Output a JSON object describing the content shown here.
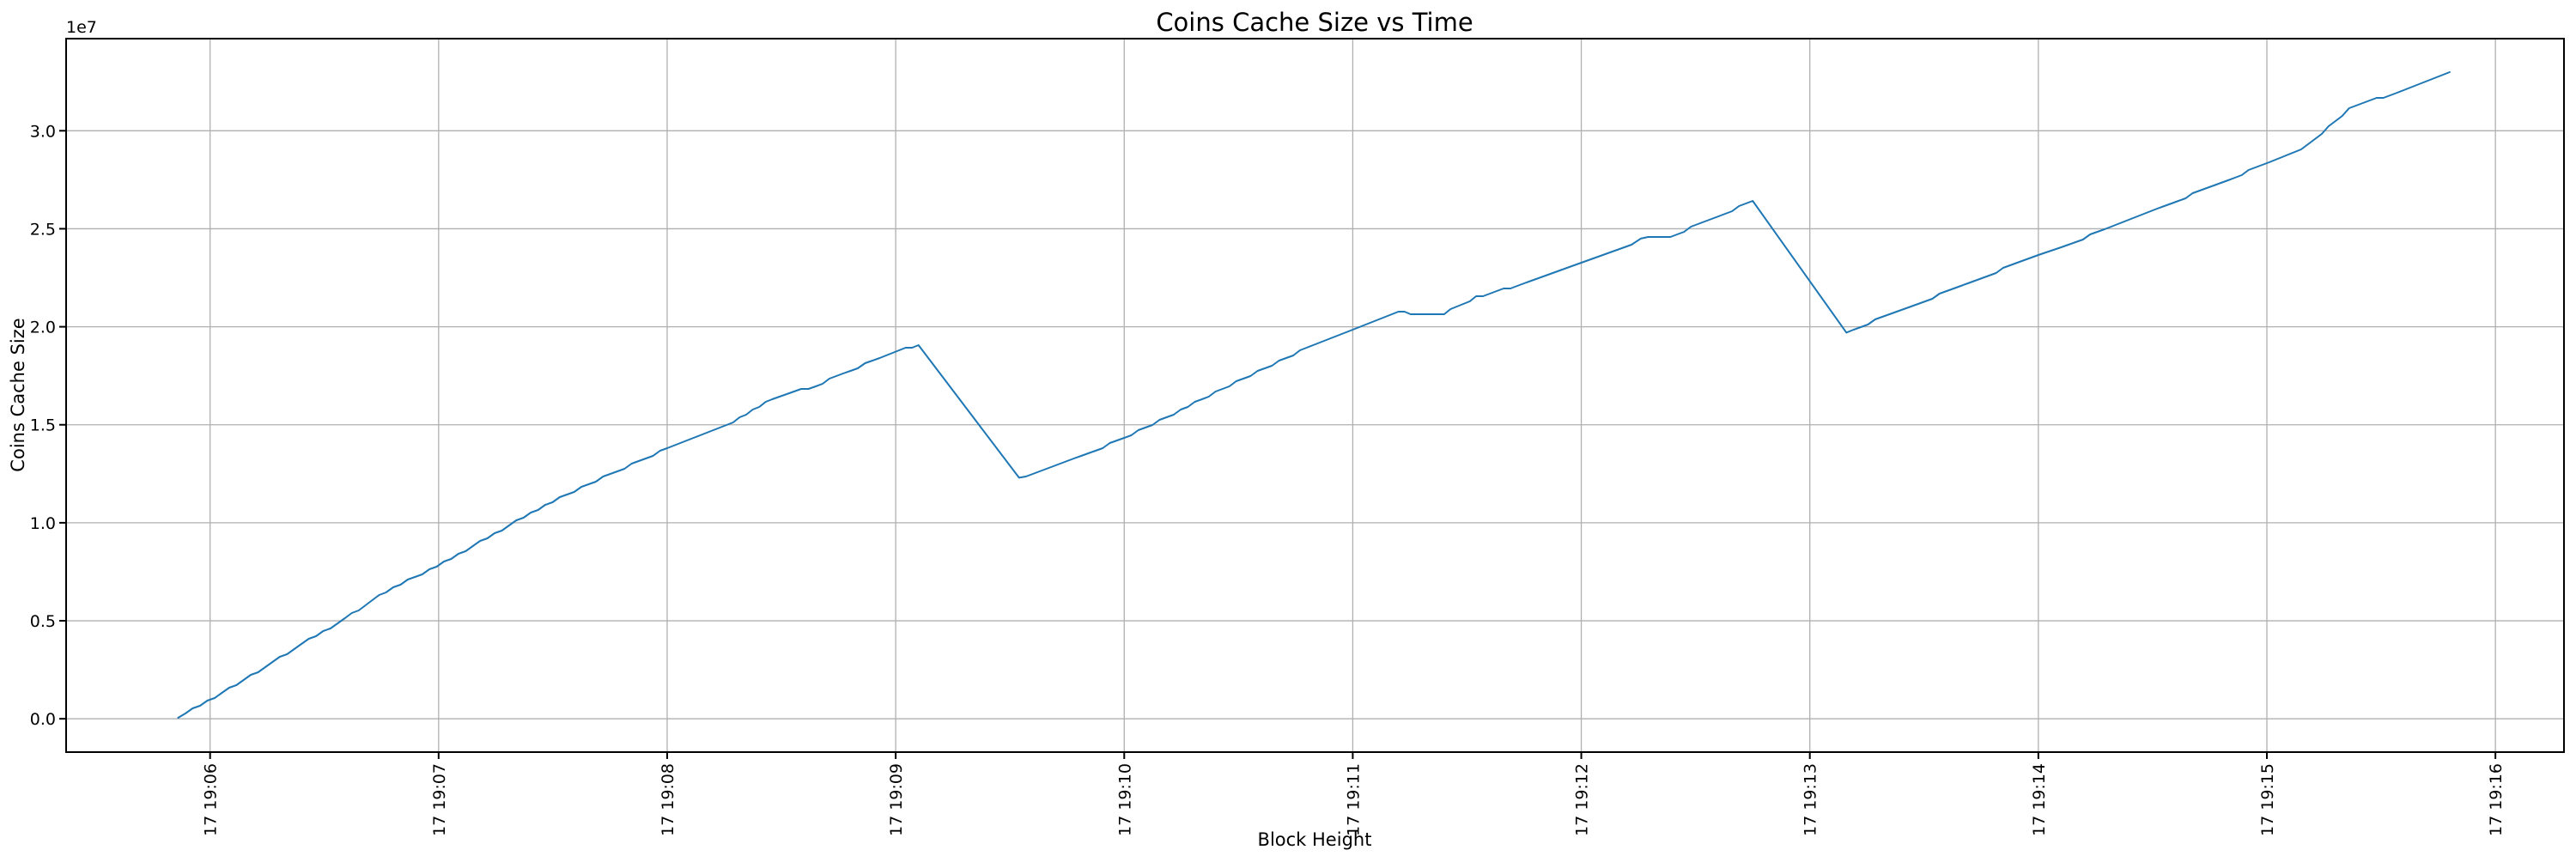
{
  "chart_data": {
    "type": "line",
    "title": "Coins Cache Size vs Time",
    "xlabel": "Block Height",
    "ylabel": "Coins Cache Size",
    "y_offset_label": "1e7",
    "grid": true,
    "legend_position": "none",
    "line_color": "#1f77b4",
    "grid_color": "#b0b0b0",
    "frame_color": "#000000",
    "x_ticks": [
      {
        "label": "17 19:06",
        "minute": 0
      },
      {
        "label": "17 19:07",
        "minute": 1
      },
      {
        "label": "17 19:08",
        "minute": 2
      },
      {
        "label": "17 19:09",
        "minute": 3
      },
      {
        "label": "17 19:10",
        "minute": 4
      },
      {
        "label": "17 19:11",
        "minute": 5
      },
      {
        "label": "17 19:12",
        "minute": 6
      },
      {
        "label": "17 19:13",
        "minute": 7
      },
      {
        "label": "17 19:14",
        "minute": 8
      },
      {
        "label": "17 19:15",
        "minute": 9
      },
      {
        "label": "17 19:16",
        "minute": 10
      }
    ],
    "y_ticks": [
      {
        "label": "0.0",
        "value": 0
      },
      {
        "label": "0.5",
        "value": 5000000
      },
      {
        "label": "1.0",
        "value": 10000000
      },
      {
        "label": "1.5",
        "value": 15000000
      },
      {
        "label": "2.0",
        "value": 20000000
      },
      {
        "label": "2.5",
        "value": 25000000
      },
      {
        "label": "3.0",
        "value": 30000000
      }
    ],
    "xlim_minutes": [
      -0.63,
      10.3
    ],
    "ylim": [
      -1700000,
      34700000
    ],
    "series": [
      {
        "name": "coins-cache-size",
        "points": [
          [
            -0.14,
            50000
          ],
          [
            0.02,
            1100000
          ],
          [
            0.21,
            2400000
          ],
          [
            0.4,
            3800000
          ],
          [
            0.59,
            5100000
          ],
          [
            0.77,
            6500000
          ],
          [
            0.96,
            7600000
          ],
          [
            1.15,
            8800000
          ],
          [
            1.34,
            10100000
          ],
          [
            1.53,
            11300000
          ],
          [
            1.72,
            12300000
          ],
          [
            2.0,
            13800000
          ],
          [
            2.26,
            15000000
          ],
          [
            2.46,
            16300000
          ],
          [
            2.65,
            17000000
          ],
          [
            2.77,
            17600000
          ],
          [
            2.93,
            18400000
          ],
          [
            3.1,
            19100000
          ],
          [
            3.54,
            12300000
          ],
          [
            3.78,
            13300000
          ],
          [
            4.0,
            14300000
          ],
          [
            4.34,
            16300000
          ],
          [
            4.49,
            17200000
          ],
          [
            4.74,
            18600000
          ],
          [
            5.0,
            19900000
          ],
          [
            5.2,
            20800000
          ],
          [
            5.28,
            20600000
          ],
          [
            5.4,
            20700000
          ],
          [
            5.54,
            21500000
          ],
          [
            5.75,
            22200000
          ],
          [
            6.0,
            23300000
          ],
          [
            6.22,
            24200000
          ],
          [
            6.26,
            24500000
          ],
          [
            6.39,
            24600000
          ],
          [
            6.75,
            26400000
          ],
          [
            7.16,
            19700000
          ],
          [
            7.38,
            20800000
          ],
          [
            7.63,
            21900000
          ],
          [
            8.0,
            23700000
          ],
          [
            8.1,
            24000000
          ],
          [
            8.29,
            25000000
          ],
          [
            8.52,
            26000000
          ],
          [
            8.83,
            27500000
          ],
          [
            9.01,
            28400000
          ],
          [
            9.15,
            29000000
          ],
          [
            9.36,
            31100000
          ],
          [
            9.57,
            32000000
          ],
          [
            9.8,
            33000000
          ]
        ]
      }
    ]
  }
}
